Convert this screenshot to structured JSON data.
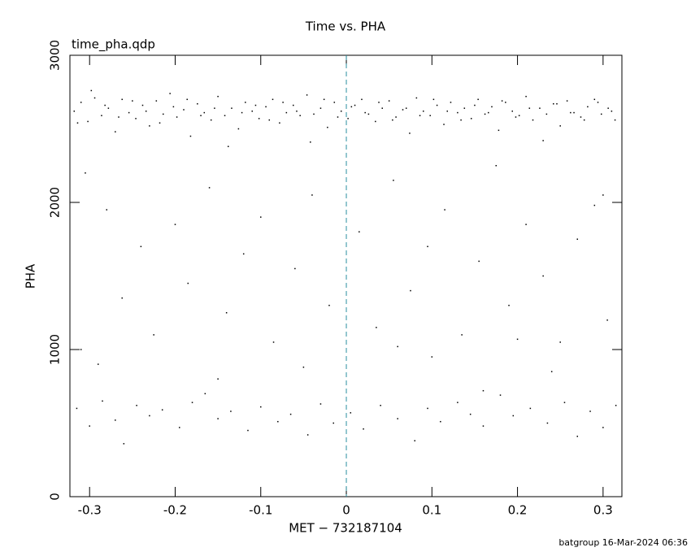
{
  "chart_data": {
    "type": "scatter",
    "title": "Time vs. PHA",
    "subtitle": "time_pha.qdp",
    "x_label": "MET − 732187104",
    "y_label": "PHA",
    "footer": "batgroup 16-Mar-2024 06:36",
    "color": "#000000",
    "reference_line_x": 0,
    "reference_line_color": "#2a8fa0",
    "xlim": [
      -0.323,
      0.322
    ],
    "ylim": [
      0,
      3000
    ],
    "xticks": [
      -0.3,
      -0.2,
      -0.1,
      0,
      0.1,
      0.2,
      0.3
    ],
    "yticks": [
      0,
      1000,
      2000,
      3000
    ],
    "x": [
      -0.318,
      -0.31,
      -0.302,
      -0.294,
      -0.286,
      -0.278,
      -0.27,
      -0.262,
      -0.254,
      -0.246,
      -0.238,
      -0.23,
      -0.222,
      -0.214,
      -0.206,
      -0.198,
      -0.19,
      -0.182,
      -0.174,
      -0.166,
      -0.158,
      -0.15,
      -0.142,
      -0.134,
      -0.126,
      -0.118,
      -0.11,
      -0.102,
      -0.094,
      -0.086,
      -0.078,
      -0.07,
      -0.062,
      -0.054,
      -0.046,
      -0.038,
      -0.03,
      -0.022,
      -0.014,
      -0.006,
      0.002,
      0.01,
      0.018,
      0.026,
      0.034,
      0.042,
      0.05,
      0.058,
      0.066,
      0.074,
      0.082,
      0.09,
      0.098,
      0.106,
      0.114,
      0.122,
      0.13,
      0.138,
      0.146,
      0.154,
      0.162,
      0.17,
      0.178,
      0.186,
      0.194,
      0.202,
      0.21,
      0.218,
      0.226,
      0.234,
      0.242,
      0.25,
      0.258,
      0.266,
      0.274,
      0.282,
      0.29,
      0.298,
      0.306,
      0.314,
      -0.314,
      -0.298,
      -0.282,
      -0.266,
      -0.25,
      -0.234,
      -0.218,
      -0.202,
      -0.186,
      -0.17,
      -0.154,
      -0.138,
      -0.122,
      -0.106,
      -0.09,
      -0.074,
      -0.058,
      -0.042,
      -0.026,
      -0.01,
      0.006,
      0.022,
      0.038,
      0.054,
      0.07,
      0.086,
      0.102,
      0.118,
      0.134,
      0.15,
      0.166,
      0.182,
      0.198,
      0.214,
      0.23,
      0.246,
      0.262,
      0.278,
      0.294,
      0.31,
      -0.305,
      -0.28,
      -0.262,
      -0.24,
      -0.225,
      -0.2,
      -0.185,
      -0.16,
      -0.14,
      -0.12,
      -0.1,
      -0.085,
      -0.06,
      -0.04,
      -0.02,
      0.015,
      0.035,
      0.055,
      0.075,
      0.095,
      0.115,
      0.135,
      0.155,
      0.175,
      0.19,
      0.21,
      0.23,
      0.25,
      0.27,
      0.29,
      0.305,
      -0.29,
      0.24,
      -0.15,
      0.1,
      -0.31,
      0.3,
      -0.05,
      0.06,
      0.2,
      -0.315,
      -0.3,
      -0.285,
      -0.27,
      -0.26,
      -0.245,
      -0.23,
      -0.215,
      -0.195,
      -0.18,
      -0.165,
      -0.15,
      -0.135,
      -0.115,
      -0.1,
      -0.08,
      -0.065,
      -0.045,
      -0.03,
      -0.015,
      0.005,
      0.02,
      0.04,
      0.06,
      0.08,
      0.095,
      0.11,
      0.13,
      0.145,
      0.16,
      0.18,
      0.195,
      0.215,
      0.235,
      0.255,
      0.27,
      0.285,
      0.3,
      0.315,
      0.16
    ],
    "values": [
      2620,
      2680,
      2550,
      2710,
      2590,
      2640,
      2480,
      2700,
      2610,
      2570,
      2660,
      2520,
      2690,
      2600,
      2740,
      2580,
      2630,
      2450,
      2670,
      2610,
      2560,
      2720,
      2590,
      2640,
      2500,
      2680,
      2620,
      2570,
      2650,
      2700,
      2540,
      2610,
      2660,
      2590,
      2730,
      2600,
      2640,
      2510,
      2680,
      2620,
      2570,
      2660,
      2700,
      2600,
      2550,
      2640,
      2690,
      2580,
      2630,
      2470,
      2710,
      2620,
      2590,
      2660,
      2530,
      2680,
      2610,
      2640,
      2570,
      2700,
      2600,
      2650,
      2490,
      2680,
      2620,
      2590,
      2720,
      2560,
      2640,
      2600,
      2670,
      2520,
      2690,
      2610,
      2580,
      2650,
      2700,
      2600,
      2640,
      2560,
      2540,
      2760,
      2660,
      2580,
      2690,
      2620,
      2540,
      2650,
      2700,
      2590,
      2640,
      2380,
      2610,
      2660,
      2560,
      2680,
      2620,
      2410,
      2700,
      2580,
      2650,
      2610,
      2680,
      2560,
      2640,
      2590,
      2700,
      2620,
      2560,
      2660,
      2610,
      2690,
      2580,
      2640,
      2420,
      2670,
      2610,
      2560,
      2680,
      2620,
      2200,
      1950,
      1350,
      1700,
      1100,
      1850,
      1450,
      2100,
      1250,
      1650,
      1900,
      1050,
      1550,
      2050,
      1300,
      1800,
      1150,
      2150,
      1400,
      1700,
      1950,
      1100,
      1600,
      2250,
      1300,
      1850,
      1500,
      1050,
      1750,
      1980,
      1200,
      900,
      850,
      800,
      950,
      1000,
      2050,
      880,
      1020,
      1070,
      600,
      480,
      650,
      520,
      360,
      620,
      550,
      590,
      470,
      640,
      700,
      530,
      580,
      450,
      610,
      510,
      560,
      420,
      630,
      500,
      570,
      460,
      620,
      530,
      380,
      600,
      510,
      640,
      560,
      480,
      690,
      550,
      600,
      500,
      640,
      410,
      580,
      470,
      620,
      720
    ]
  }
}
